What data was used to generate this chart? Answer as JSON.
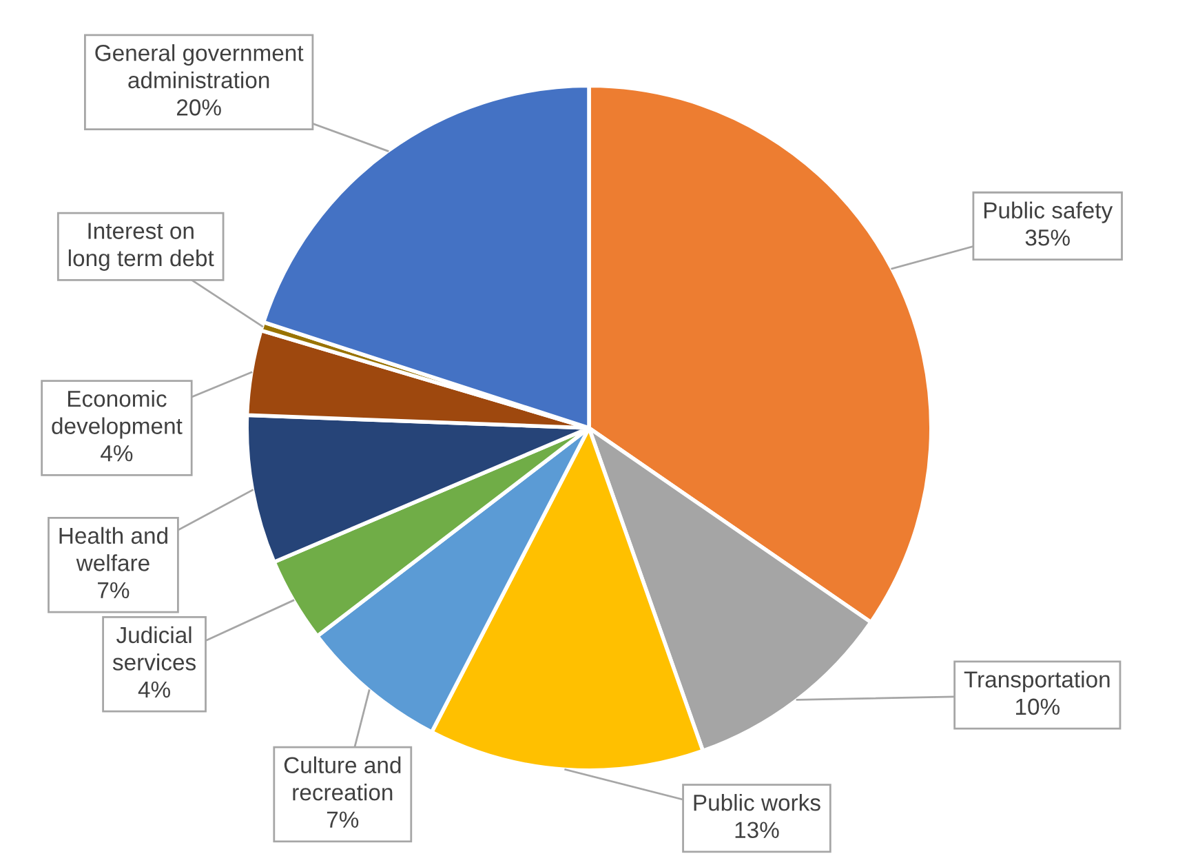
{
  "chart_data": {
    "type": "pie",
    "categories": [
      "Public safety",
      "Transportation",
      "Public works",
      "Culture and recreation",
      "Judicial services",
      "Health and welfare",
      "Economic development",
      "Interest on long term debt",
      "General government administration"
    ],
    "values": [
      34.6,
      10,
      13,
      7,
      4,
      7,
      4,
      0.4,
      20
    ],
    "value_labels": [
      "35%",
      "10%",
      "13%",
      "7%",
      "4%",
      "7%",
      "4%",
      null,
      "20%"
    ],
    "colors": [
      "#ed7d31",
      "#a5a5a5",
      "#ffc000",
      "#5b9bd5",
      "#70ad47",
      "#264478",
      "#9e480e",
      "#997300",
      "#4472c4"
    ]
  }
}
